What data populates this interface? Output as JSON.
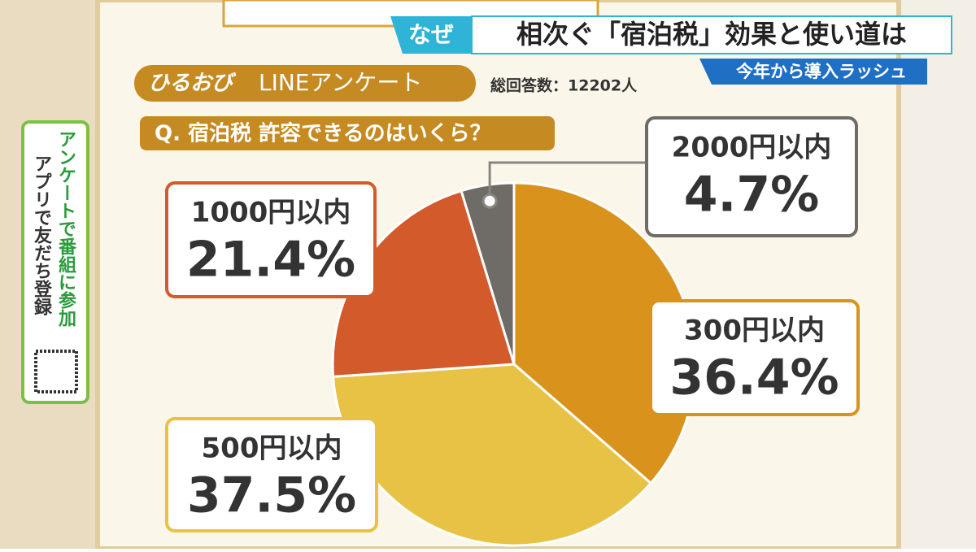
{
  "banner": {
    "tag": "なぜ",
    "headline": "相次ぐ「宿泊税」効果と使い道は",
    "sub": "今年から導入ラッシュ"
  },
  "side_panel": {
    "line1": "アンケートで番組に参加",
    "line2": "アプリで友だち登録"
  },
  "chart_data": {
    "type": "pie",
    "brand": "ひるおび",
    "source": "LINEアンケート",
    "subtitle": "総回答数：12202人",
    "title": "Q. 宿泊税 許容できるのはいくら？",
    "categories": [
      "300円以内",
      "500円以内",
      "1000円以内",
      "2000円以内"
    ],
    "values": [
      36.4,
      37.5,
      21.4,
      4.7
    ],
    "value_labels": [
      "36.4%",
      "37.5%",
      "21.4%",
      "4.7%"
    ],
    "colors": [
      "#d9921c",
      "#e8c244",
      "#d35a2b",
      "#6f6b66"
    ]
  }
}
